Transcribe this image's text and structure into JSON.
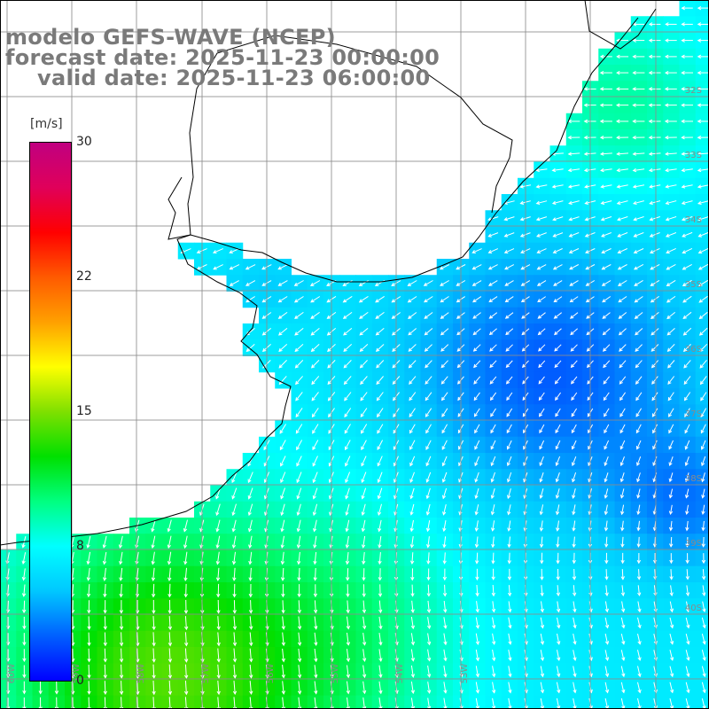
{
  "title": {
    "model": "modelo GEFS-WAVE (NCEP)",
    "forecast": "forecast date: 2025-11-23 00:00:00",
    "valid": "valid date: 2025-11-23 06:00:00",
    "color": "#7a7a7a"
  },
  "colorbar": {
    "unit": "[m/s]",
    "min": 0,
    "max": 30,
    "ticks": [
      "30",
      "22",
      "15",
      "8",
      "0"
    ],
    "colors": [
      "#0000ff",
      "#0060ff",
      "#00c8ff",
      "#00ffff",
      "#00ff80",
      "#00e000",
      "#7fe000",
      "#ffff00",
      "#ffa000",
      "#ff5a00",
      "#ff0000",
      "#e0005a",
      "#c00080"
    ]
  },
  "map": {
    "field": "wind speed",
    "latitude_labels": [
      "32S",
      "33S",
      "34S",
      "35S",
      "36S",
      "37S",
      "38S",
      "39S",
      "40S"
    ],
    "longitude_labels": [
      "60W",
      "59W",
      "58W",
      "57W",
      "56W",
      "55W",
      "54W",
      "53W"
    ],
    "land_color": "#ffffff",
    "coast_color": "#000000",
    "grid_color": "#8c8c8c",
    "arrow_color": "#ffffff"
  }
}
